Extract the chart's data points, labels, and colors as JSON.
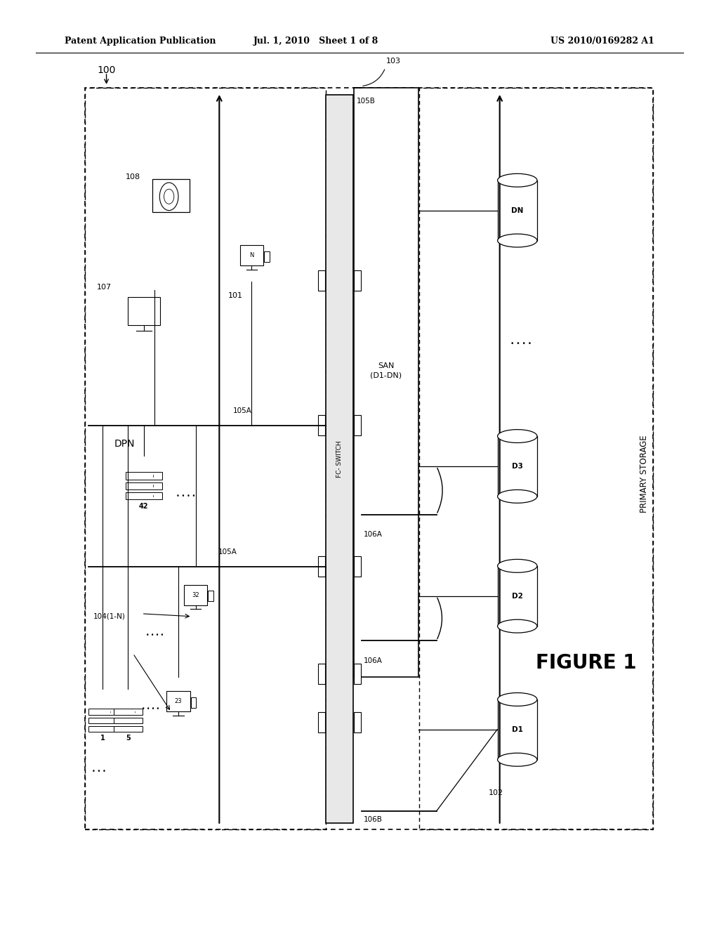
{
  "bg_color": "#ffffff",
  "header_left": "Patent Application Publication",
  "header_mid": "Jul. 1, 2010   Sheet 1 of 8",
  "header_right": "US 2010/0169282 A1",
  "figure_label": "FIGURE 1",
  "main_label": "100",
  "dpn_label": "DPN",
  "fc_switch_label": "FC- SWITCH",
  "san_label": "SAN\n(D1-DN)",
  "primary_storage_label": "PRIMARY STORAGE",
  "label_101": "101",
  "label_102": "102",
  "label_103": "103",
  "label_104": "104(1-N)",
  "label_105A_1": "105A",
  "label_105A_2": "105A",
  "label_105B": "105B",
  "label_106A_1": "106A",
  "label_106A_2": "106A",
  "label_106B": "106B",
  "label_107": "107",
  "label_108": "108"
}
